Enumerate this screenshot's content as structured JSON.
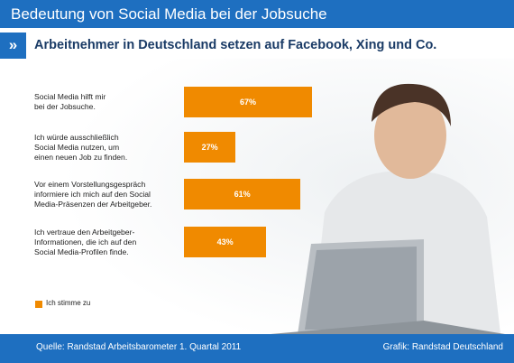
{
  "chart_data": {
    "type": "bar",
    "orientation": "horizontal",
    "title": "Bedeutung von Social Media bei der Jobsuche",
    "subtitle": "Arbeitnehmer in Deutschland setzen auf Facebook, Xing und Co.",
    "categories": [
      "Social Media hilft mir\nbei der Jobsuche.",
      "Ich würde ausschließlich\nSocial Media nutzen, um\neinen neuen Job zu finden.",
      "Vor einem Vorstellungsgespräch\ninformiere ich mich auf den Social\nMedia-Präsenzen der Arbeitgeber.",
      "Ich vertraue den Arbeitgeber-\nInformationen, die ich auf den\nSocial Media-Profilen finde."
    ],
    "series": [
      {
        "name": "Ich stimme zu",
        "color": "#f08a00",
        "values": [
          67,
          27,
          61,
          43
        ],
        "value_labels": [
          "67%",
          "27%",
          "61%",
          "43%"
        ]
      }
    ],
    "xlim": [
      0,
      100
    ],
    "source": "Quelle: Randstad Arbeitsbarometer 1. Quartal 2011",
    "credit": "Grafik: Randstad Deutschland"
  }
}
